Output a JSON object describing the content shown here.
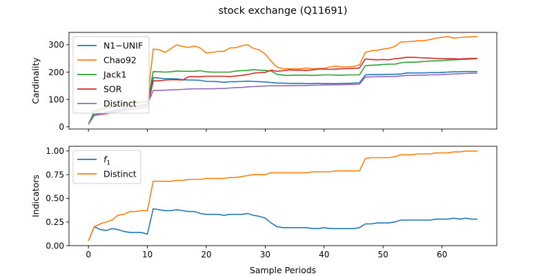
{
  "figure": {
    "title": "stock exchange (Q11691)",
    "xlabel": "Sample Periods"
  },
  "chart_data": [
    {
      "type": "line",
      "ylabel": "Cardinality",
      "xlim": [
        -3.3,
        69.3
      ],
      "ylim": [
        -8,
        345
      ],
      "xticks": [
        0,
        10,
        20,
        30,
        40,
        50,
        60
      ],
      "xtick_labels_shown": false,
      "yticks": [
        0,
        100,
        200,
        300
      ],
      "grid": false,
      "legend": "upper-left",
      "x": [
        0,
        1,
        2,
        3,
        4,
        5,
        6,
        7,
        8,
        9,
        10,
        11,
        12,
        13,
        14,
        15,
        16,
        17,
        18,
        19,
        20,
        21,
        22,
        23,
        24,
        25,
        26,
        27,
        28,
        29,
        30,
        31,
        32,
        33,
        34,
        35,
        36,
        37,
        38,
        39,
        40,
        41,
        42,
        43,
        44,
        45,
        46,
        47,
        48,
        49,
        50,
        51,
        52,
        53,
        54,
        55,
        56,
        57,
        58,
        59,
        60,
        61,
        62,
        63,
        64,
        65,
        66
      ],
      "series": [
        {
          "name": "N1−UNIF",
          "color": "#1f77b4",
          "values": [
            10,
            45,
            48,
            55,
            58,
            63,
            70,
            73,
            75,
            78,
            80,
            180,
            178,
            176,
            176,
            175,
            172,
            171,
            171,
            170,
            166,
            166,
            165,
            163,
            165,
            165,
            166,
            167,
            166,
            165,
            164,
            162,
            160,
            160,
            159,
            159,
            159,
            158,
            158,
            159,
            158,
            158,
            158,
            159,
            159,
            160,
            161,
            190,
            191,
            191,
            191,
            192,
            192,
            193,
            197,
            197,
            197,
            197,
            198,
            198,
            199,
            200,
            201,
            201,
            202,
            202,
            202
          ]
        },
        {
          "name": "Chao92",
          "color": "#ff7f0e",
          "values": [
            10,
            55,
            65,
            72,
            76,
            80,
            85,
            88,
            91,
            93,
            95,
            284,
            282,
            272,
            286,
            299,
            294,
            290,
            295,
            288,
            270,
            272,
            276,
            276,
            288,
            289,
            296,
            300,
            287,
            281,
            266,
            240,
            218,
            213,
            212,
            212,
            212,
            215,
            212,
            213,
            214,
            219,
            222,
            219,
            219,
            221,
            226,
            272,
            278,
            280,
            284,
            287,
            294,
            310,
            311,
            312,
            315,
            315,
            319,
            324,
            327,
            330,
            324,
            326,
            328,
            329,
            330
          ]
        },
        {
          "name": "Jack1",
          "color": "#2ca02c",
          "values": [
            10,
            55,
            62,
            68,
            72,
            75,
            80,
            83,
            86,
            89,
            90,
            202,
            201,
            200,
            201,
            204,
            203,
            203,
            203,
            205,
            201,
            200,
            200,
            200,
            200,
            204,
            205,
            206,
            209,
            207,
            206,
            204,
            192,
            189,
            188,
            189,
            189,
            189,
            188,
            189,
            190,
            190,
            189,
            189,
            190,
            190,
            190,
            224,
            225,
            226,
            228,
            229,
            229,
            234,
            236,
            236,
            237,
            239,
            240,
            241,
            242,
            244,
            245,
            246,
            247,
            248,
            249
          ]
        },
        {
          "name": "SOR",
          "color": "#d62728",
          "values": [
            10,
            42,
            45,
            48,
            52,
            55,
            60,
            64,
            67,
            70,
            72,
            168,
            168,
            171,
            172,
            172,
            171,
            183,
            183,
            183,
            185,
            185,
            185,
            185,
            184,
            186,
            188,
            191,
            196,
            198,
            199,
            207,
            203,
            205,
            208,
            207,
            207,
            206,
            208,
            211,
            211,
            210,
            211,
            212,
            213,
            214,
            215,
            248,
            246,
            245,
            246,
            245,
            249,
            251,
            254,
            254,
            253,
            252,
            251,
            250,
            249,
            249,
            249,
            248,
            249,
            250,
            250
          ]
        },
        {
          "name": "Distinct",
          "color": "#9467bd",
          "values": [
            10,
            42,
            46,
            50,
            55,
            60,
            65,
            70,
            75,
            80,
            82,
            133,
            133,
            134,
            135,
            136,
            137,
            138,
            139,
            139,
            139,
            139,
            140,
            140,
            142,
            143,
            144,
            146,
            147,
            148,
            149,
            150,
            150,
            150,
            150,
            151,
            151,
            151,
            152,
            152,
            153,
            153,
            154,
            154,
            155,
            155,
            156,
            182,
            182,
            183,
            183,
            184,
            184,
            186,
            188,
            188,
            189,
            189,
            190,
            190,
            191,
            192,
            193,
            194,
            195,
            196,
            196
          ]
        }
      ]
    },
    {
      "type": "line",
      "ylabel": "Indicators",
      "xlim": [
        -3.3,
        69.3
      ],
      "ylim": [
        0,
        1.05
      ],
      "xticks": [
        0,
        10,
        20,
        30,
        40,
        50,
        60
      ],
      "yticks": [
        0.0,
        0.25,
        0.5,
        0.75,
        1.0
      ],
      "ytick_labels": [
        "0.00",
        "0.25",
        "0.50",
        "0.75",
        "1.00"
      ],
      "grid": false,
      "legend": "upper-left",
      "x": [
        0,
        1,
        2,
        3,
        4,
        5,
        6,
        7,
        8,
        9,
        10,
        11,
        12,
        13,
        14,
        15,
        16,
        17,
        18,
        19,
        20,
        21,
        22,
        23,
        24,
        25,
        26,
        27,
        28,
        29,
        30,
        31,
        32,
        33,
        34,
        35,
        36,
        37,
        38,
        39,
        40,
        41,
        42,
        43,
        44,
        45,
        46,
        47,
        48,
        49,
        50,
        51,
        52,
        53,
        54,
        55,
        56,
        57,
        58,
        59,
        60,
        61,
        62,
        63,
        64,
        65,
        66
      ],
      "series": [
        {
          "name": "f1",
          "legend_label": "f",
          "legend_sub": "1",
          "color": "#1f77b4",
          "values": [
            0.05,
            0.2,
            0.17,
            0.16,
            0.18,
            0.17,
            0.15,
            0.14,
            0.14,
            0.14,
            0.12,
            0.39,
            0.38,
            0.37,
            0.37,
            0.38,
            0.37,
            0.36,
            0.36,
            0.34,
            0.33,
            0.33,
            0.33,
            0.32,
            0.33,
            0.33,
            0.33,
            0.34,
            0.32,
            0.31,
            0.29,
            0.24,
            0.2,
            0.19,
            0.19,
            0.19,
            0.19,
            0.19,
            0.18,
            0.18,
            0.19,
            0.18,
            0.18,
            0.18,
            0.18,
            0.18,
            0.19,
            0.23,
            0.23,
            0.24,
            0.24,
            0.24,
            0.25,
            0.27,
            0.27,
            0.27,
            0.27,
            0.27,
            0.27,
            0.28,
            0.28,
            0.28,
            0.29,
            0.28,
            0.29,
            0.28,
            0.28
          ]
        },
        {
          "name": "Distinct",
          "color": "#ff7f0e",
          "values": [
            0.05,
            0.2,
            0.23,
            0.25,
            0.27,
            0.32,
            0.33,
            0.36,
            0.36,
            0.37,
            0.37,
            0.68,
            0.68,
            0.68,
            0.68,
            0.69,
            0.69,
            0.7,
            0.7,
            0.7,
            0.71,
            0.71,
            0.71,
            0.71,
            0.72,
            0.72,
            0.73,
            0.74,
            0.75,
            0.75,
            0.75,
            0.77,
            0.77,
            0.77,
            0.77,
            0.77,
            0.77,
            0.77,
            0.78,
            0.78,
            0.78,
            0.78,
            0.79,
            0.79,
            0.79,
            0.79,
            0.79,
            0.92,
            0.93,
            0.93,
            0.93,
            0.93,
            0.94,
            0.96,
            0.96,
            0.96,
            0.97,
            0.97,
            0.97,
            0.98,
            0.98,
            0.98,
            0.99,
            0.99,
            1.0,
            1.0,
            1.0
          ]
        }
      ]
    }
  ]
}
